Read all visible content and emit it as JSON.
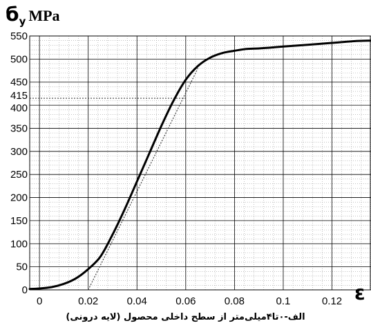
{
  "chart_data": {
    "type": "line",
    "ylabel": {
      "symbol": "б",
      "subscript": "y",
      "unit": "MPa"
    },
    "xlabel": "ε",
    "caption": "الف-۰تا۴میلی‌متر از سطح داخلی محصول (لایه درونی)",
    "xlim": [
      -0.004,
      0.136
    ],
    "ylim": [
      0,
      550
    ],
    "x_ticks": [
      {
        "value": 0,
        "label": "0"
      },
      {
        "value": 0.02,
        "label": "0.02"
      },
      {
        "value": 0.04,
        "label": "0.04"
      },
      {
        "value": 0.06,
        "label": "0.06"
      },
      {
        "value": 0.08,
        "label": "0.08"
      },
      {
        "value": 0.1,
        "label": "0.1"
      },
      {
        "value": 0.12,
        "label": "0.12"
      }
    ],
    "y_ticks": [
      {
        "value": 0,
        "label": "0"
      },
      {
        "value": 50,
        "label": "50"
      },
      {
        "value": 100,
        "label": "100"
      },
      {
        "value": 150,
        "label": "150"
      },
      {
        "value": 200,
        "label": "200"
      },
      {
        "value": 250,
        "label": "250"
      },
      {
        "value": 300,
        "label": "300"
      },
      {
        "value": 350,
        "label": "350"
      },
      {
        "value": 400,
        "label": "400"
      },
      {
        "value": 415,
        "label": "415"
      },
      {
        "value": 450,
        "label": "450"
      },
      {
        "value": 500,
        "label": "500"
      },
      {
        "value": 550,
        "label": "550"
      }
    ],
    "grid": true,
    "series": [
      {
        "x": [
          -0.004,
          0.0,
          0.005,
          0.01,
          0.015,
          0.02,
          0.025,
          0.03,
          0.035,
          0.04,
          0.045,
          0.05,
          0.055,
          0.06,
          0.065,
          0.07,
          0.075,
          0.08,
          0.085,
          0.09,
          0.095,
          0.1,
          0.11,
          0.12,
          0.13,
          0.136
        ],
        "y": [
          2,
          3,
          6,
          13,
          25,
          45,
          72,
          120,
          175,
          235,
          295,
          355,
          410,
          455,
          485,
          503,
          513,
          518,
          522,
          523,
          525,
          527,
          531,
          535,
          539,
          540
        ]
      }
    ],
    "reference_lines": [
      {
        "type": "horizontal",
        "y": 415,
        "x_to": 0.06
      },
      {
        "type": "tangent",
        "x": [
          0.02,
          0.065
        ],
        "y": [
          0,
          480
        ]
      }
    ],
    "colors": {
      "curve": "#000000",
      "grid_major": "#000000",
      "grid_minor": "#9a9a9a",
      "reference": "#404040"
    }
  }
}
